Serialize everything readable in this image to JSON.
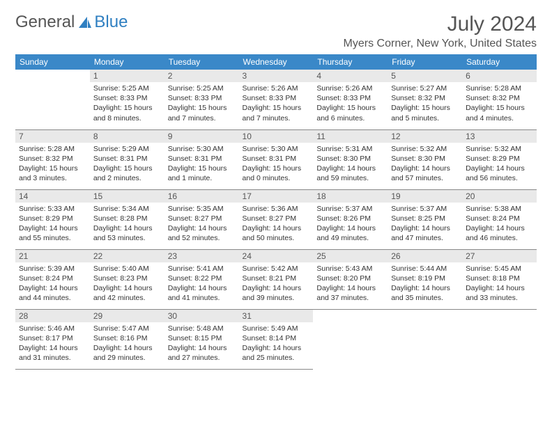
{
  "brand": {
    "word1": "General",
    "word2": "Blue",
    "icon_fill": "#2f7fc1"
  },
  "title": {
    "month": "July 2024",
    "location": "Myers Corner, New York, United States"
  },
  "colors": {
    "header_bg": "#3a88c8",
    "header_text": "#ffffff",
    "daynum_bg": "#e9e9e9",
    "text": "#333333",
    "rule": "#888888",
    "page_bg": "#ffffff"
  },
  "weekdays": [
    "Sunday",
    "Monday",
    "Tuesday",
    "Wednesday",
    "Thursday",
    "Friday",
    "Saturday"
  ],
  "first_weekday_index": 1,
  "days": [
    {
      "n": 1,
      "sunrise": "5:25 AM",
      "sunset": "8:33 PM",
      "daylight": "15 hours and 8 minutes."
    },
    {
      "n": 2,
      "sunrise": "5:25 AM",
      "sunset": "8:33 PM",
      "daylight": "15 hours and 7 minutes."
    },
    {
      "n": 3,
      "sunrise": "5:26 AM",
      "sunset": "8:33 PM",
      "daylight": "15 hours and 7 minutes."
    },
    {
      "n": 4,
      "sunrise": "5:26 AM",
      "sunset": "8:33 PM",
      "daylight": "15 hours and 6 minutes."
    },
    {
      "n": 5,
      "sunrise": "5:27 AM",
      "sunset": "8:32 PM",
      "daylight": "15 hours and 5 minutes."
    },
    {
      "n": 6,
      "sunrise": "5:28 AM",
      "sunset": "8:32 PM",
      "daylight": "15 hours and 4 minutes."
    },
    {
      "n": 7,
      "sunrise": "5:28 AM",
      "sunset": "8:32 PM",
      "daylight": "15 hours and 3 minutes."
    },
    {
      "n": 8,
      "sunrise": "5:29 AM",
      "sunset": "8:31 PM",
      "daylight": "15 hours and 2 minutes."
    },
    {
      "n": 9,
      "sunrise": "5:30 AM",
      "sunset": "8:31 PM",
      "daylight": "15 hours and 1 minute."
    },
    {
      "n": 10,
      "sunrise": "5:30 AM",
      "sunset": "8:31 PM",
      "daylight": "15 hours and 0 minutes."
    },
    {
      "n": 11,
      "sunrise": "5:31 AM",
      "sunset": "8:30 PM",
      "daylight": "14 hours and 59 minutes."
    },
    {
      "n": 12,
      "sunrise": "5:32 AM",
      "sunset": "8:30 PM",
      "daylight": "14 hours and 57 minutes."
    },
    {
      "n": 13,
      "sunrise": "5:32 AM",
      "sunset": "8:29 PM",
      "daylight": "14 hours and 56 minutes."
    },
    {
      "n": 14,
      "sunrise": "5:33 AM",
      "sunset": "8:29 PM",
      "daylight": "14 hours and 55 minutes."
    },
    {
      "n": 15,
      "sunrise": "5:34 AM",
      "sunset": "8:28 PM",
      "daylight": "14 hours and 53 minutes."
    },
    {
      "n": 16,
      "sunrise": "5:35 AM",
      "sunset": "8:27 PM",
      "daylight": "14 hours and 52 minutes."
    },
    {
      "n": 17,
      "sunrise": "5:36 AM",
      "sunset": "8:27 PM",
      "daylight": "14 hours and 50 minutes."
    },
    {
      "n": 18,
      "sunrise": "5:37 AM",
      "sunset": "8:26 PM",
      "daylight": "14 hours and 49 minutes."
    },
    {
      "n": 19,
      "sunrise": "5:37 AM",
      "sunset": "8:25 PM",
      "daylight": "14 hours and 47 minutes."
    },
    {
      "n": 20,
      "sunrise": "5:38 AM",
      "sunset": "8:24 PM",
      "daylight": "14 hours and 46 minutes."
    },
    {
      "n": 21,
      "sunrise": "5:39 AM",
      "sunset": "8:24 PM",
      "daylight": "14 hours and 44 minutes."
    },
    {
      "n": 22,
      "sunrise": "5:40 AM",
      "sunset": "8:23 PM",
      "daylight": "14 hours and 42 minutes."
    },
    {
      "n": 23,
      "sunrise": "5:41 AM",
      "sunset": "8:22 PM",
      "daylight": "14 hours and 41 minutes."
    },
    {
      "n": 24,
      "sunrise": "5:42 AM",
      "sunset": "8:21 PM",
      "daylight": "14 hours and 39 minutes."
    },
    {
      "n": 25,
      "sunrise": "5:43 AM",
      "sunset": "8:20 PM",
      "daylight": "14 hours and 37 minutes."
    },
    {
      "n": 26,
      "sunrise": "5:44 AM",
      "sunset": "8:19 PM",
      "daylight": "14 hours and 35 minutes."
    },
    {
      "n": 27,
      "sunrise": "5:45 AM",
      "sunset": "8:18 PM",
      "daylight": "14 hours and 33 minutes."
    },
    {
      "n": 28,
      "sunrise": "5:46 AM",
      "sunset": "8:17 PM",
      "daylight": "14 hours and 31 minutes."
    },
    {
      "n": 29,
      "sunrise": "5:47 AM",
      "sunset": "8:16 PM",
      "daylight": "14 hours and 29 minutes."
    },
    {
      "n": 30,
      "sunrise": "5:48 AM",
      "sunset": "8:15 PM",
      "daylight": "14 hours and 27 minutes."
    },
    {
      "n": 31,
      "sunrise": "5:49 AM",
      "sunset": "8:14 PM",
      "daylight": "14 hours and 25 minutes."
    }
  ],
  "labels": {
    "sunrise": "Sunrise:",
    "sunset": "Sunset:",
    "daylight": "Daylight:"
  }
}
